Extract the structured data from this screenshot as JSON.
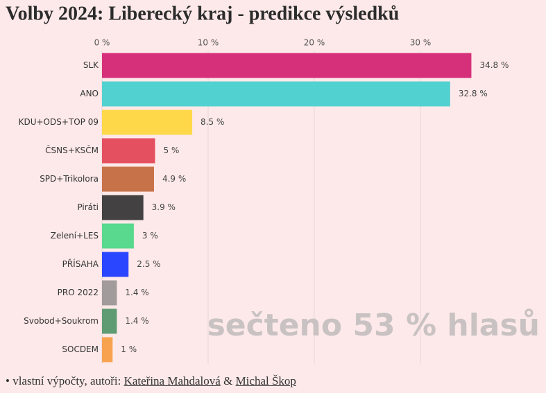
{
  "chart_data": {
    "type": "bar",
    "orientation": "horizontal",
    "title": "Volby 2024: Liberecký kraj - predikce výsledků",
    "categories": [
      "SLK",
      "ANO",
      "KDU+ODS+TOP 09",
      "ČSNS+KSČM",
      "SPD+Trikolora",
      "Piráti",
      "Zelení+LES",
      "PŘÍSAHA",
      "PRO 2022",
      "Svobod+Soukrom",
      "SOCDEM"
    ],
    "values": [
      34.8,
      32.8,
      8.5,
      5,
      4.9,
      3.9,
      3,
      2.5,
      1.4,
      1.4,
      1
    ],
    "value_labels": [
      "34.8 %",
      "32.8 %",
      "8.5 %",
      "5 %",
      "4.9 %",
      "3.9 %",
      "3 %",
      "2.5 %",
      "1.4 %",
      "1.4 %",
      "1 %"
    ],
    "colors": [
      "#d6307b",
      "#52d1d1",
      "#ffd84a",
      "#e4505f",
      "#c8724a",
      "#434141",
      "#58d98d",
      "#2a46ff",
      "#a19b9b",
      "#5f9b73",
      "#f7a24e"
    ],
    "xlim": [
      0,
      40
    ],
    "xticks": [
      {
        "value": 0,
        "label": "0 %"
      },
      {
        "value": 10,
        "label": "10 %"
      },
      {
        "value": 20,
        "label": "20 %"
      },
      {
        "value": 30,
        "label": "30 %"
      }
    ],
    "grid": true,
    "annotation": "sečteno 53 % hlasů"
  },
  "footer": {
    "prefix": "• vlastní výpočty, autoři:",
    "author_1": "Kateřina Mahdalová",
    "joiner": "&",
    "author_2": "Michal Škop"
  }
}
